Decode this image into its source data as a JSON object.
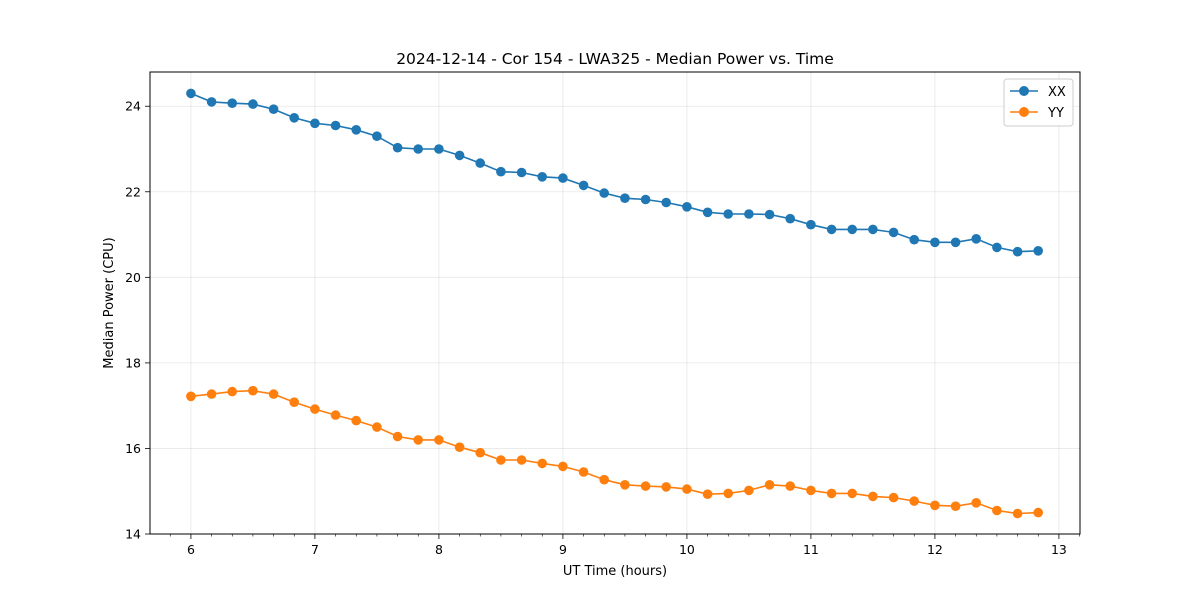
{
  "chart_data": {
    "type": "line",
    "title": "2024-12-14 - Cor 154 - LWA325 - Median Power vs. Time",
    "xlabel": "UT Time (hours)",
    "ylabel": "Median Power (CPU)",
    "xlim": [
      5.67,
      13.17
    ],
    "ylim": [
      14,
      24.8
    ],
    "xticks": [
      6,
      7,
      8,
      9,
      10,
      11,
      12,
      13
    ],
    "yticks": [
      14,
      16,
      18,
      20,
      22,
      24
    ],
    "grid": true,
    "legend_position": "top-right",
    "x": [
      6.0,
      6.167,
      6.333,
      6.5,
      6.667,
      6.833,
      7.0,
      7.167,
      7.333,
      7.5,
      7.667,
      7.833,
      8.0,
      8.167,
      8.333,
      8.5,
      8.667,
      8.833,
      9.0,
      9.167,
      9.333,
      9.5,
      9.667,
      9.833,
      10.0,
      10.167,
      10.333,
      10.5,
      10.667,
      10.833,
      11.0,
      11.167,
      11.333,
      11.5,
      11.667,
      11.833,
      12.0,
      12.167,
      12.333,
      12.5,
      12.667,
      12.833
    ],
    "series": [
      {
        "name": "XX",
        "color": "#1f77b4",
        "values": [
          24.3,
          24.1,
          24.07,
          24.05,
          23.93,
          23.73,
          23.6,
          23.55,
          23.45,
          23.3,
          23.03,
          23.0,
          23.0,
          22.85,
          22.67,
          22.47,
          22.45,
          22.35,
          22.32,
          22.15,
          21.97,
          21.85,
          21.82,
          21.75,
          21.65,
          21.52,
          21.48,
          21.48,
          21.47,
          21.37,
          21.23,
          21.12,
          21.12,
          21.12,
          21.05,
          20.88,
          20.82,
          20.82,
          20.9,
          20.7,
          20.6,
          20.62
        ]
      },
      {
        "name": "YY",
        "color": "#ff7f0e",
        "values": [
          17.22,
          17.27,
          17.33,
          17.35,
          17.27,
          17.08,
          16.92,
          16.78,
          16.65,
          16.5,
          16.28,
          16.2,
          16.2,
          16.03,
          15.9,
          15.73,
          15.73,
          15.65,
          15.58,
          15.45,
          15.27,
          15.15,
          15.12,
          15.1,
          15.05,
          14.93,
          14.95,
          15.02,
          15.15,
          15.12,
          15.02,
          14.95,
          14.95,
          14.88,
          14.85,
          14.77,
          14.67,
          14.65,
          14.73,
          14.55,
          14.48,
          14.5
        ]
      }
    ]
  }
}
